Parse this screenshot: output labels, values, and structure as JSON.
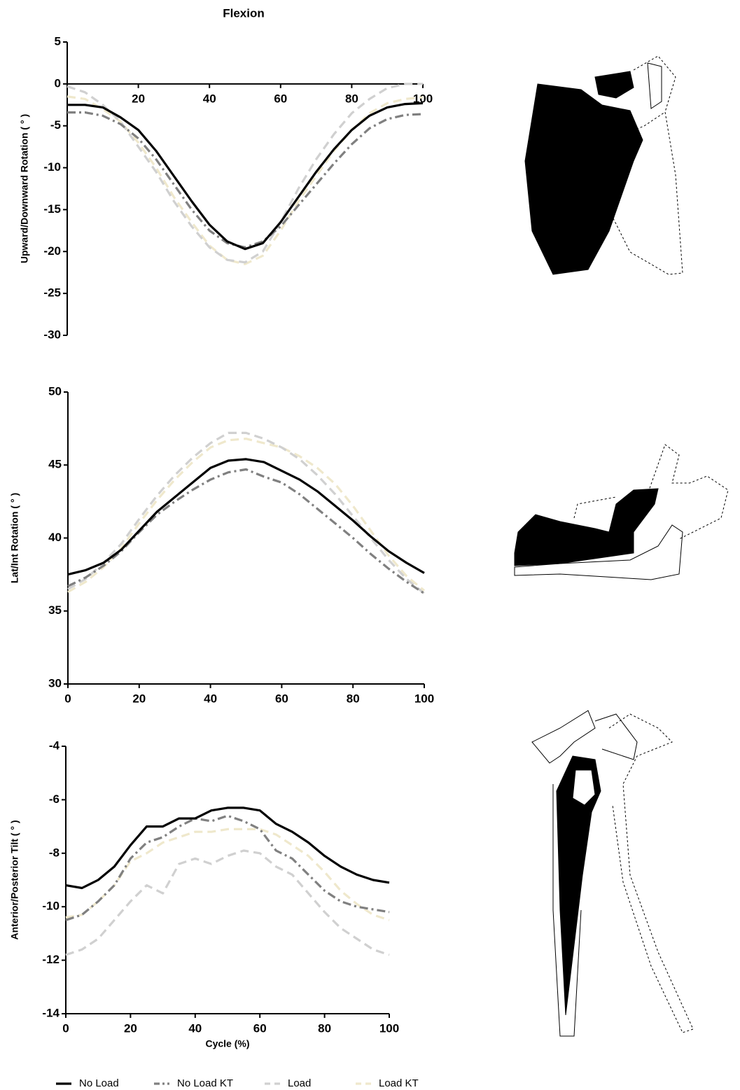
{
  "legend": [
    {
      "name": "No Load",
      "color": "#000000",
      "dash": "solid"
    },
    {
      "name": "No Load KT",
      "color": "#808080",
      "dash": "dashdot"
    },
    {
      "name": "Load",
      "color": "#d0d0d0",
      "dash": "dash"
    },
    {
      "name": "Load KT",
      "color": "#efe8cc",
      "dash": "dash"
    }
  ],
  "chart_data": [
    {
      "type": "line",
      "title": "Flexion",
      "ylabel": "Upward/Downward Rotation ( ° )",
      "x": [
        0,
        5,
        10,
        15,
        20,
        25,
        30,
        35,
        40,
        45,
        50,
        55,
        60,
        65,
        70,
        75,
        80,
        85,
        90,
        95,
        100
      ],
      "xlim": [
        0,
        100
      ],
      "xticks": [
        20,
        40,
        60,
        80,
        100
      ],
      "ylim": [
        -30,
        5
      ],
      "yticks": [
        -30,
        -25,
        -20,
        -15,
        -10,
        -5,
        0,
        5
      ],
      "series": [
        {
          "values": [
            -2.5,
            -2.5,
            -2.8,
            -4,
            -5.5,
            -8,
            -11,
            -14,
            -16.8,
            -18.8,
            -19.7,
            -19,
            -16.5,
            -13.5,
            -10.5,
            -7.8,
            -5.5,
            -3.8,
            -2.8,
            -2.4,
            -2.3
          ]
        },
        {
          "values": [
            -3.4,
            -3.4,
            -3.8,
            -4.8,
            -6.5,
            -9,
            -12,
            -15,
            -17.5,
            -19,
            -19.5,
            -18.8,
            -17,
            -14.5,
            -12,
            -9.5,
            -7.2,
            -5.3,
            -4.2,
            -3.7,
            -3.6
          ]
        },
        {
          "values": [
            -0.3,
            -1,
            -2.5,
            -4.5,
            -7.5,
            -10.5,
            -14,
            -17,
            -19.5,
            -21,
            -21.3,
            -20,
            -16.5,
            -12.5,
            -9,
            -6,
            -3.5,
            -1.8,
            -0.5,
            0,
            0
          ]
        },
        {
          "values": [
            -1.5,
            -1.8,
            -3,
            -4.5,
            -7,
            -10,
            -13.5,
            -16.5,
            -19.3,
            -21,
            -21.5,
            -20.5,
            -17.5,
            -14,
            -11,
            -8,
            -5.5,
            -3.5,
            -2.3,
            -1.8,
            -1.6
          ]
        }
      ]
    },
    {
      "type": "line",
      "ylabel": "Lat/Int Rotation ( ° )",
      "x": [
        0,
        5,
        10,
        15,
        20,
        25,
        30,
        35,
        40,
        45,
        50,
        55,
        60,
        65,
        70,
        75,
        80,
        85,
        90,
        95,
        100
      ],
      "xlim": [
        0,
        100
      ],
      "xticks": [
        0,
        20,
        40,
        60,
        80,
        100
      ],
      "ylim": [
        30,
        50
      ],
      "yticks": [
        30,
        35,
        40,
        45,
        50
      ],
      "series": [
        {
          "values": [
            37.5,
            37.8,
            38.3,
            39.2,
            40.5,
            41.8,
            42.8,
            43.8,
            44.8,
            45.3,
            45.4,
            45.2,
            44.6,
            44,
            43.2,
            42.2,
            41.2,
            40.1,
            39.1,
            38.3,
            37.6
          ]
        },
        {
          "values": [
            36.7,
            37.3,
            38.1,
            39.1,
            40.4,
            41.6,
            42.5,
            43.3,
            44,
            44.5,
            44.7,
            44.2,
            43.8,
            43,
            42,
            41,
            40,
            38.9,
            37.9,
            37,
            36.2
          ]
        },
        {
          "values": [
            36.5,
            37.2,
            38.3,
            39.6,
            41.3,
            42.9,
            44.3,
            45.5,
            46.5,
            47.2,
            47.2,
            46.8,
            46.2,
            45.4,
            44.3,
            43,
            41.5,
            40,
            38.5,
            37.2,
            36.2
          ]
        },
        {
          "values": [
            36.3,
            37,
            38,
            39.3,
            41,
            42.6,
            44,
            45.2,
            46.2,
            46.7,
            46.8,
            46.5,
            46.2,
            45.6,
            44.8,
            43.7,
            42.2,
            40.5,
            38.8,
            37.4,
            36.4
          ]
        }
      ]
    },
    {
      "type": "line",
      "ylabel": "Anterior/Posterior Tilt ( ° )",
      "xlabel": "Cycle (%)",
      "x": [
        0,
        5,
        10,
        15,
        20,
        25,
        30,
        35,
        40,
        45,
        50,
        55,
        60,
        65,
        70,
        75,
        80,
        85,
        90,
        95,
        100
      ],
      "xlim": [
        0,
        100
      ],
      "xticks": [
        0,
        20,
        40,
        60,
        80,
        100
      ],
      "ylim": [
        -14,
        -4
      ],
      "yticks": [
        -14,
        -12,
        -10,
        -8,
        -6,
        -4
      ],
      "series": [
        {
          "values": [
            -9.2,
            -9.3,
            -9,
            -8.5,
            -7.7,
            -7,
            -7,
            -6.7,
            -6.7,
            -6.4,
            -6.3,
            -6.3,
            -6.4,
            -6.9,
            -7.2,
            -7.6,
            -8.1,
            -8.5,
            -8.8,
            -9,
            -9.1
          ]
        },
        {
          "values": [
            -10.5,
            -10.3,
            -9.8,
            -9.2,
            -8.2,
            -7.6,
            -7.4,
            -7,
            -6.7,
            -6.8,
            -6.6,
            -6.8,
            -7.1,
            -7.9,
            -8.2,
            -8.8,
            -9.4,
            -9.8,
            -10,
            -10.1,
            -10.2
          ]
        },
        {
          "values": [
            -11.8,
            -11.6,
            -11.2,
            -10.5,
            -9.8,
            -9.2,
            -9.5,
            -8.4,
            -8.2,
            -8.4,
            -8.1,
            -7.9,
            -8,
            -8.5,
            -8.8,
            -9.5,
            -10.2,
            -10.8,
            -11.2,
            -11.6,
            -11.8
          ]
        },
        {
          "values": [
            -10.4,
            -10.3,
            -9.8,
            -9.2,
            -8.3,
            -8,
            -7.6,
            -7.4,
            -7.2,
            -7.2,
            -7.1,
            -7.1,
            -7.1,
            -7.3,
            -7.7,
            -8.1,
            -8.7,
            -9.4,
            -9.9,
            -10.3,
            -10.5
          ]
        }
      ]
    }
  ]
}
